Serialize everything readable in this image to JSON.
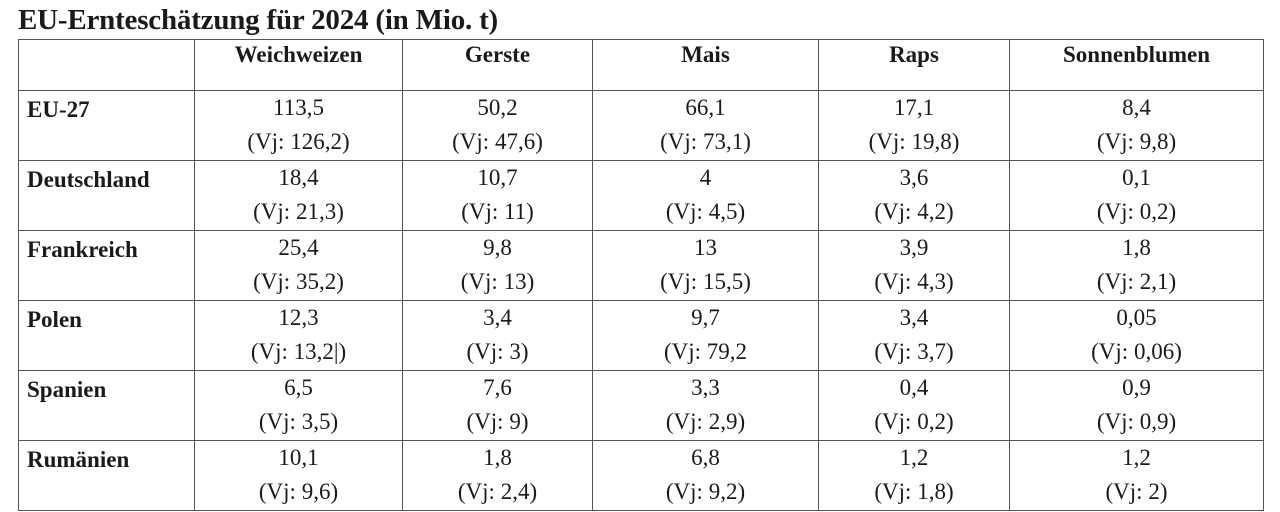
{
  "title": "EU-Ernteschätzung für 2024 (in Mio. t)",
  "columns": [
    "",
    "Weichweizen",
    "Gerste",
    "Mais",
    "Raps",
    "Sonnenblumen"
  ],
  "rows": [
    {
      "label": "EU-27",
      "cells": [
        {
          "value": "113,5",
          "prev": "(Vj: 126,2)"
        },
        {
          "value": "50,2",
          "prev": "(Vj: 47,6)"
        },
        {
          "value": "66,1",
          "prev": "(Vj: 73,1)"
        },
        {
          "value": "17,1",
          "prev": "(Vj: 19,8)"
        },
        {
          "value": "8,4",
          "prev": "(Vj: 9,8)"
        }
      ]
    },
    {
      "label": "Deutschland",
      "cells": [
        {
          "value": "18,4",
          "prev": "(Vj: 21,3)"
        },
        {
          "value": "10,7",
          "prev": "(Vj: 11)"
        },
        {
          "value": "4",
          "prev": "(Vj: 4,5)"
        },
        {
          "value": "3,6",
          "prev": "(Vj: 4,2)"
        },
        {
          "value": "0,1",
          "prev": "(Vj: 0,2)"
        }
      ]
    },
    {
      "label": "Frankreich",
      "cells": [
        {
          "value": "25,4",
          "prev": "(Vj: 35,2)"
        },
        {
          "value": "9,8",
          "prev": "(Vj: 13)"
        },
        {
          "value": "13",
          "prev": "(Vj: 15,5)"
        },
        {
          "value": "3,9",
          "prev": "(Vj: 4,3)"
        },
        {
          "value": "1,8",
          "prev": "(Vj: 2,1)"
        }
      ]
    },
    {
      "label": "Polen",
      "cells": [
        {
          "value": "12,3",
          "prev": "(Vj: 13,2|)"
        },
        {
          "value": "3,4",
          "prev": "(Vj: 3)"
        },
        {
          "value": "9,7",
          "prev": "(Vj: 79,2"
        },
        {
          "value": "3,4",
          "prev": "(Vj: 3,7)"
        },
        {
          "value": "0,05",
          "prev": "(Vj: 0,06)"
        }
      ]
    },
    {
      "label": "Spanien",
      "cells": [
        {
          "value": "6,5",
          "prev": "(Vj: 3,5)"
        },
        {
          "value": "7,6",
          "prev": "(Vj: 9)"
        },
        {
          "value": "3,3",
          "prev": "(Vj: 2,9)"
        },
        {
          "value": "0,4",
          "prev": "(Vj: 0,2)"
        },
        {
          "value": "0,9",
          "prev": "(Vj: 0,9)"
        }
      ]
    },
    {
      "label": "Rumänien",
      "cells": [
        {
          "value": "10,1",
          "prev": "(Vj: 9,6)"
        },
        {
          "value": "1,8",
          "prev": "(Vj: 2,4)"
        },
        {
          "value": "6,8",
          "prev": "(Vj: 9,2)"
        },
        {
          "value": "1,2",
          "prev": "(Vj: 1,8)"
        },
        {
          "value": "1,2",
          "prev": "(Vj: 2)"
        }
      ]
    }
  ]
}
